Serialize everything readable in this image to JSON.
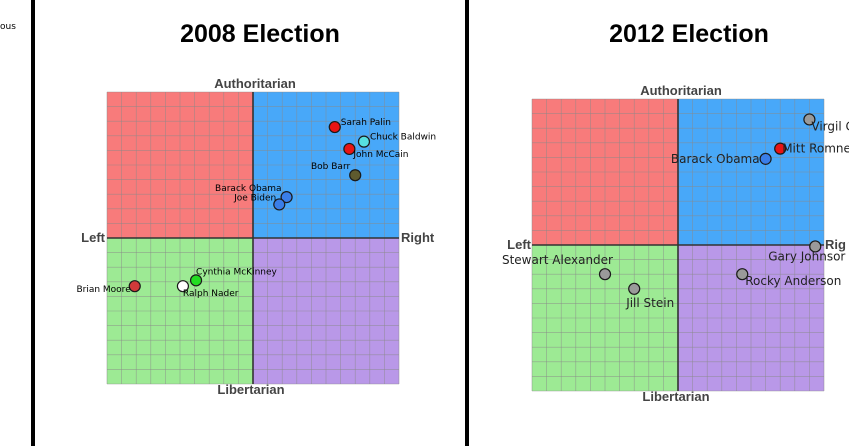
{
  "edge_text": "ous",
  "chart_data": [
    {
      "type": "scatter",
      "title": "2008 Election",
      "quadrant_labels": {
        "top": "Authoritarian",
        "bottom": "Libertarian",
        "left": "Left",
        "right": "Right"
      },
      "xlim": [
        -10,
        10
      ],
      "ylim": [
        -10,
        10
      ],
      "grid": true,
      "quadrant_colors": {
        "top_left": "#f87b7b",
        "top_right": "#48a8f9",
        "bottom_left": "#9dea94",
        "bottom_right": "#b998e8"
      },
      "points": [
        {
          "name": "Sarah Palin",
          "x": 5.6,
          "y": 7.6,
          "color": "#e81414"
        },
        {
          "name": "Chuck Baldwin",
          "x": 7.6,
          "y": 6.6,
          "color": "#56e0e0"
        },
        {
          "name": "John McCain",
          "x": 6.6,
          "y": 6.1,
          "color": "#e81414"
        },
        {
          "name": "Bob Barr",
          "x": 7.0,
          "y": 4.3,
          "color": "#5e5a2e"
        },
        {
          "name": "Barack Obama",
          "x": 2.3,
          "y": 2.8,
          "color": "#3a7ee8"
        },
        {
          "name": "Joe Biden",
          "x": 1.8,
          "y": 2.3,
          "color": "#3a7ee8"
        },
        {
          "name": "Cynthia McKinney",
          "x": -3.9,
          "y": -2.9,
          "color": "#22dd22"
        },
        {
          "name": "Brian Moore",
          "x": -8.1,
          "y": -3.3,
          "color": "#d23a3a"
        },
        {
          "name": "Ralph Nader",
          "x": -4.8,
          "y": -3.3,
          "color": "#ffffff"
        }
      ]
    },
    {
      "type": "scatter",
      "title": "2012 Election",
      "quadrant_labels": {
        "top": "Authoritarian",
        "bottom": "Libertarian",
        "left": "Left",
        "right": "Rig"
      },
      "xlim": [
        -10,
        10
      ],
      "ylim": [
        -10,
        10
      ],
      "grid": true,
      "quadrant_colors": {
        "top_left": "#f87b7b",
        "top_right": "#48a8f9",
        "bottom_left": "#9dea94",
        "bottom_right": "#b998e8"
      },
      "points": [
        {
          "name": "Virgil G",
          "x": 9.0,
          "y": 8.6,
          "color": "#9a9a9a"
        },
        {
          "name": "Barack Obama",
          "x": 6.0,
          "y": 5.9,
          "color": "#3a7ee8"
        },
        {
          "name": "Mitt Romne",
          "x": 7.0,
          "y": 6.6,
          "color": "#e81414"
        },
        {
          "name": "Gary Johnsor",
          "x": 9.4,
          "y": -0.1,
          "color": "#9a9a9a"
        },
        {
          "name": "Rocky Anderson",
          "x": 4.4,
          "y": -2.0,
          "color": "#9a9a9a"
        },
        {
          "name": "Stewart Alexander",
          "x": -5.0,
          "y": -2.0,
          "color": "#9a9a9a"
        },
        {
          "name": "Jill Stein",
          "x": -3.0,
          "y": -3.0,
          "color": "#9a9a9a"
        }
      ]
    }
  ]
}
